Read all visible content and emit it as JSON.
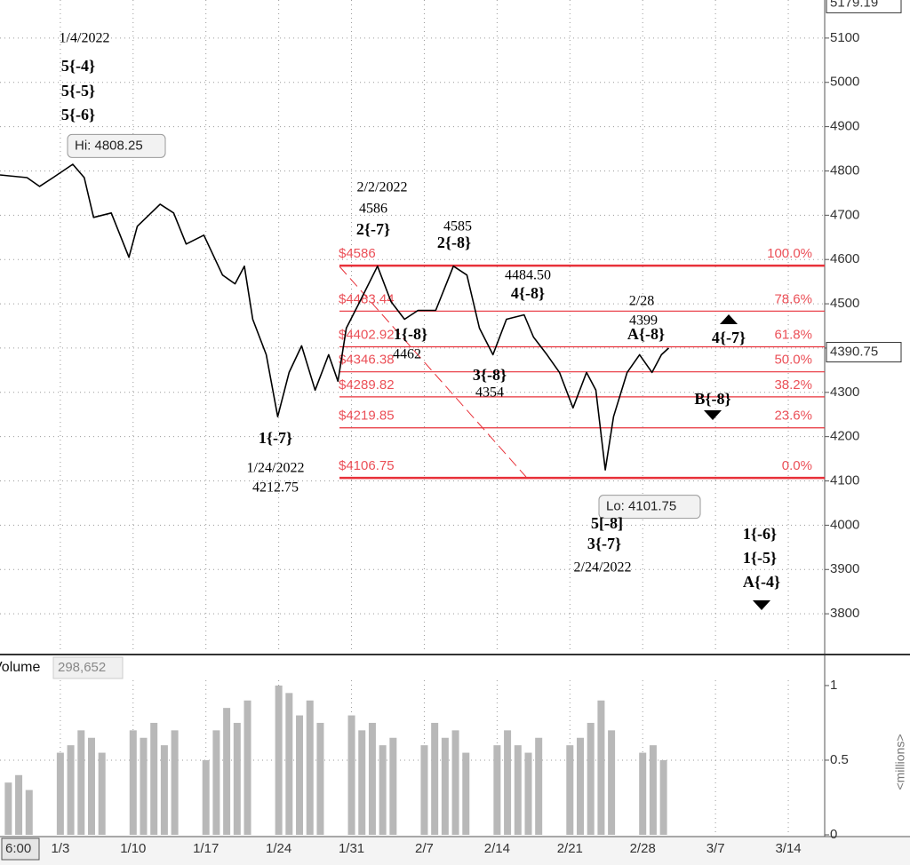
{
  "chart_data": [
    {
      "type": "line",
      "color": "#000000",
      "x": [
        -5.8,
        -3.2,
        -2.0,
        -0.7,
        1.2,
        2.3,
        3.2,
        4.9,
        6.6,
        7.4,
        9.6,
        10.9,
        12.1,
        13.8,
        15.6,
        16.8,
        17.7,
        18.5,
        19.8,
        20.9,
        22.0,
        23.2,
        24.5,
        25.8,
        26.7,
        27.5,
        28.8,
        30.5,
        31.8,
        33.1,
        34.4,
        36.1,
        37.8,
        39.1,
        40.3,
        41.6,
        42.9,
        44.6,
        45.5,
        46.8,
        48.0,
        49.3,
        50.6,
        51.5,
        52.4,
        53.2,
        54.5,
        55.7,
        56.9,
        57.8,
        58.5
      ],
      "values": [
        4791,
        4785,
        4765,
        4785,
        4815,
        4785,
        4695,
        4705,
        4605,
        4675,
        4725,
        4705,
        4635,
        4655,
        4565,
        4545,
        4585,
        4465,
        4385,
        4245,
        4345,
        4405,
        4305,
        4385,
        4325,
        4445,
        4505,
        4585,
        4505,
        4465,
        4485,
        4485,
        4585,
        4565,
        4445,
        4385,
        4465,
        4475,
        4425,
        4385,
        4345,
        4265,
        4345,
        4305,
        4125,
        4245,
        4345,
        4385,
        4345,
        4385,
        4400
      ],
      "xlim": [
        -5.8,
        73.5
      ],
      "xticks": [
        {
          "value": 0,
          "label": "1/3"
        },
        {
          "value": 7,
          "label": "1/10"
        },
        {
          "value": 14,
          "label": "1/17"
        },
        {
          "value": 21,
          "label": "1/24"
        },
        {
          "value": 28,
          "label": "1/31"
        },
        {
          "value": 35,
          "label": "2/7"
        },
        {
          "value": 42,
          "label": "2/14"
        },
        {
          "value": 49,
          "label": "2/21"
        },
        {
          "value": 56,
          "label": "2/28"
        },
        {
          "value": 63,
          "label": "3/7"
        },
        {
          "value": 70,
          "label": "3/14"
        }
      ],
      "x_start_label": "6:00",
      "ylim": [
        3712,
        5186
      ],
      "yticks": [
        3800,
        3900,
        4000,
        4100,
        4200,
        4300,
        4400,
        4500,
        4600,
        4700,
        4800,
        4900,
        5000,
        5100
      ],
      "grid": true,
      "price_markers": [
        5179.19,
        4390.75
      ],
      "hi": {
        "value": 4808.25,
        "label": "Hi: 4808.25"
      },
      "lo": {
        "value": 4101.75,
        "label": "Lo: 4101.75"
      },
      "fib_color": "#e8313a",
      "fib_levels": [
        {
          "price": 4586,
          "label": "$4586",
          "pct": "100.0%"
        },
        {
          "price": 4483.44,
          "label": "$4483.44",
          "pct": "78.6%"
        },
        {
          "price": 4402.92,
          "label": "$4402.92",
          "pct": "61.8%"
        },
        {
          "price": 4346.38,
          "label": "$4346.38",
          "pct": "50.0%"
        },
        {
          "price": 4289.82,
          "label": "$4289.82",
          "pct": "38.2%"
        },
        {
          "price": 4219.85,
          "label": "$4219.85",
          "pct": "23.6%"
        },
        {
          "price": 4106.75,
          "label": "$4106.75",
          "pct": "0.0%"
        }
      ],
      "annotations": [
        "1/4/2022",
        "5{-4}",
        "5{-5}",
        "5{-6}",
        "2/2/2022",
        "4586",
        "2{-7}",
        "4585",
        "2{-8}",
        "4484.50",
        "4{-8}",
        "2/28",
        "4399",
        "A{-8}",
        "4{-7}",
        "1{-8}",
        "4462",
        "3{-8}",
        "4354",
        "B{-8}",
        "1{-7}",
        "1/24/2022",
        "4212.75",
        "5[-8]",
        "3{-7}",
        "2/24/2022",
        "1{-6}",
        "1{-5}",
        "A{-4}"
      ]
    },
    {
      "type": "bar",
      "title": "Volume",
      "current": {
        "value": 298652,
        "label": "298,652"
      },
      "ylabel": "<millions>",
      "color": "#b8b8b8",
      "x": [
        -5,
        -4,
        -3,
        0,
        1,
        2,
        3,
        4,
        7,
        8,
        9,
        10,
        11,
        14,
        15,
        16,
        17,
        18,
        21,
        22,
        23,
        24,
        25,
        28,
        29,
        30,
        31,
        32,
        35,
        36,
        37,
        38,
        39,
        42,
        43,
        44,
        45,
        46,
        49,
        50,
        51,
        52,
        53,
        56,
        57,
        58
      ],
      "values": [
        0.35,
        0.4,
        0.3,
        0.55,
        0.6,
        0.7,
        0.65,
        0.55,
        0.7,
        0.65,
        0.75,
        0.6,
        0.7,
        0.5,
        0.7,
        0.85,
        0.75,
        0.9,
        1.0,
        0.95,
        0.8,
        0.9,
        0.75,
        0.8,
        0.7,
        0.75,
        0.6,
        0.65,
        0.6,
        0.75,
        0.65,
        0.7,
        0.55,
        0.6,
        0.7,
        0.6,
        0.55,
        0.65,
        0.6,
        0.65,
        0.75,
        0.9,
        0.7,
        0.55,
        0.6,
        0.5
      ],
      "ylim": [
        0,
        1.19
      ],
      "yticks": [
        0,
        0.5,
        1
      ]
    }
  ]
}
